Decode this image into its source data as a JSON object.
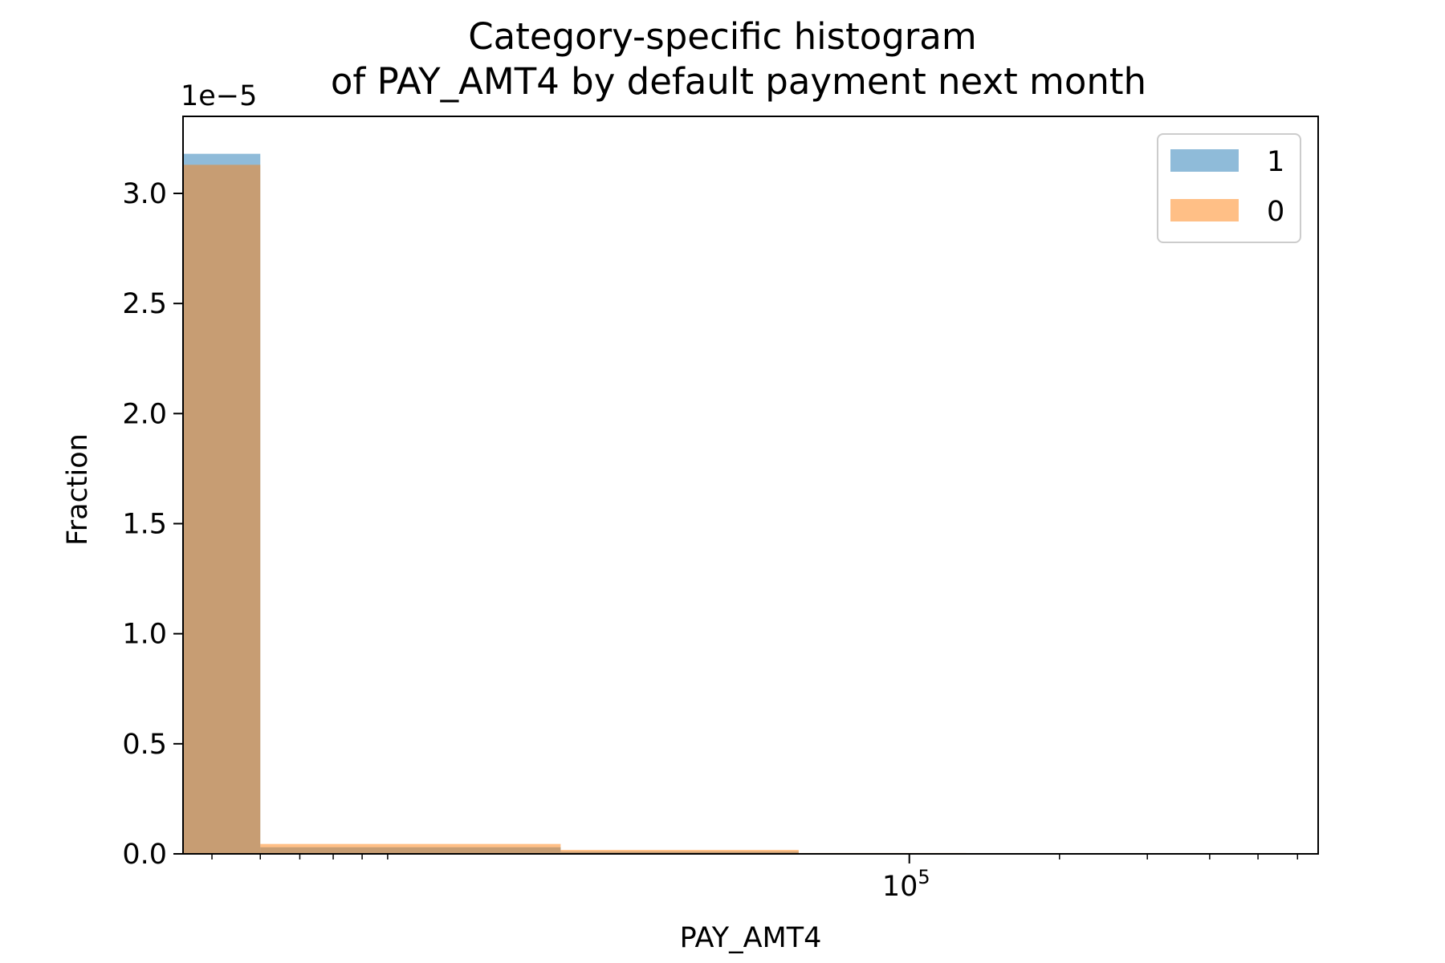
{
  "chart_data": {
    "type": "bar",
    "title_line1": "Category-specific histogram",
    "title_line2": "of PAY_AMT4 by default payment next month",
    "xlabel": "PAY_AMT4",
    "ylabel": "Fraction",
    "y_offset_label": "1e−5",
    "x_scale": "log",
    "xlim": [
      3500,
      660000
    ],
    "ylim": [
      0,
      3.35
    ],
    "y_ticks": [
      0.0,
      0.5,
      1.0,
      1.5,
      2.0,
      2.5,
      3.0
    ],
    "y_tick_labels": [
      "0.0",
      "0.5",
      "1.0",
      "1.5",
      "2.0",
      "2.5",
      "3.0"
    ],
    "x_major_ticks": [
      {
        "value": 100000,
        "base": "10",
        "exp": "5"
      }
    ],
    "x_minor_ticks": [
      4000,
      5000,
      6000,
      7000,
      8000,
      9000,
      200000,
      300000,
      400000,
      500000,
      600000
    ],
    "grid": false,
    "legend_position": "top-right",
    "series": [
      {
        "name": "1",
        "color": "#1f77b4",
        "opacity": 0.5,
        "bins": [
          {
            "x0": 3500,
            "x1": 5000,
            "value": 3.18
          },
          {
            "x0": 5000,
            "x1": 20000,
            "value": 0.03
          },
          {
            "x0": 20000,
            "x1": 60000,
            "value": 0.01
          }
        ]
      },
      {
        "name": "0",
        "color": "#ff7f0e",
        "opacity": 0.5,
        "bins": [
          {
            "x0": 3500,
            "x1": 5000,
            "value": 3.13
          },
          {
            "x0": 5000,
            "x1": 20000,
            "value": 0.045
          },
          {
            "x0": 20000,
            "x1": 60000,
            "value": 0.018
          },
          {
            "x0": 60000,
            "x1": 130000,
            "value": 0.004
          }
        ]
      }
    ]
  }
}
